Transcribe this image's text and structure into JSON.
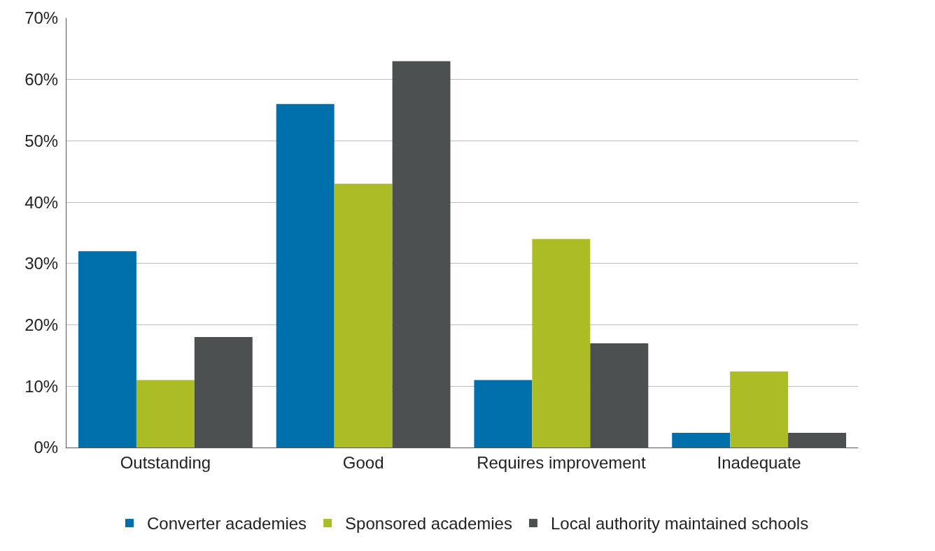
{
  "chart_data": {
    "type": "bar",
    "categories": [
      "Outstanding",
      "Good",
      "Requires improvement",
      "Inadequate"
    ],
    "series": [
      {
        "name": "Converter academies",
        "color": "#0070ad",
        "values": [
          32,
          56,
          11,
          2.4
        ]
      },
      {
        "name": "Sponsored academies",
        "color": "#acbc24",
        "values": [
          11,
          43,
          34,
          12.4
        ]
      },
      {
        "name": "Local authority maintained schools",
        "color": "#4d5051",
        "values": [
          18,
          63,
          17,
          2.4
        ]
      }
    ],
    "ylim": [
      0,
      70
    ],
    "yticks": [
      {
        "value": 0,
        "label": "0%"
      },
      {
        "value": 10,
        "label": "10%"
      },
      {
        "value": 20,
        "label": "20%"
      },
      {
        "value": 30,
        "label": "30%"
      },
      {
        "value": 40,
        "label": "40%"
      },
      {
        "value": 50,
        "label": "50%"
      },
      {
        "value": 60,
        "label": "60%"
      },
      {
        "value": 70,
        "label": "70%"
      }
    ],
    "grid": "y",
    "legend": "bottom"
  }
}
